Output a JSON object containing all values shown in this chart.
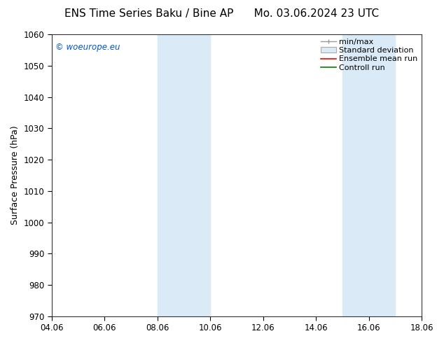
{
  "title_left": "ENS Time Series Baku / Bine AP",
  "title_right": "Mo. 03.06.2024 23 UTC",
  "ylabel": "Surface Pressure (hPa)",
  "ylim": [
    970,
    1060
  ],
  "yticks": [
    970,
    980,
    990,
    1000,
    1010,
    1020,
    1030,
    1040,
    1050,
    1060
  ],
  "xtick_labels": [
    "04.06",
    "06.06",
    "08.06",
    "10.06",
    "12.06",
    "14.06",
    "16.06",
    "18.06"
  ],
  "xtick_positions": [
    0,
    2,
    4,
    6,
    8,
    10,
    12,
    14
  ],
  "xlim": [
    0,
    14
  ],
  "shaded_bands": [
    {
      "x_start": 4.0,
      "x_end": 5.0,
      "color": "#daeaf7"
    },
    {
      "x_start": 4.9,
      "x_end": 6.0,
      "color": "#daeaf7"
    },
    {
      "x_start": 11.0,
      "x_end": 12.0,
      "color": "#daeaf7"
    },
    {
      "x_start": 11.9,
      "x_end": 13.0,
      "color": "#daeaf7"
    }
  ],
  "shaded_bands2": [
    {
      "x_start": 4.0,
      "x_end": 6.0,
      "color": "#daeaf7"
    },
    {
      "x_start": 11.0,
      "x_end": 13.0,
      "color": "#daeaf7"
    }
  ],
  "watermark": "© woeurope.eu",
  "watermark_color": "#0055cc",
  "background_color": "#ffffff",
  "title_fontsize": 11,
  "axis_label_fontsize": 9,
  "tick_fontsize": 8.5,
  "legend_fontsize": 8
}
